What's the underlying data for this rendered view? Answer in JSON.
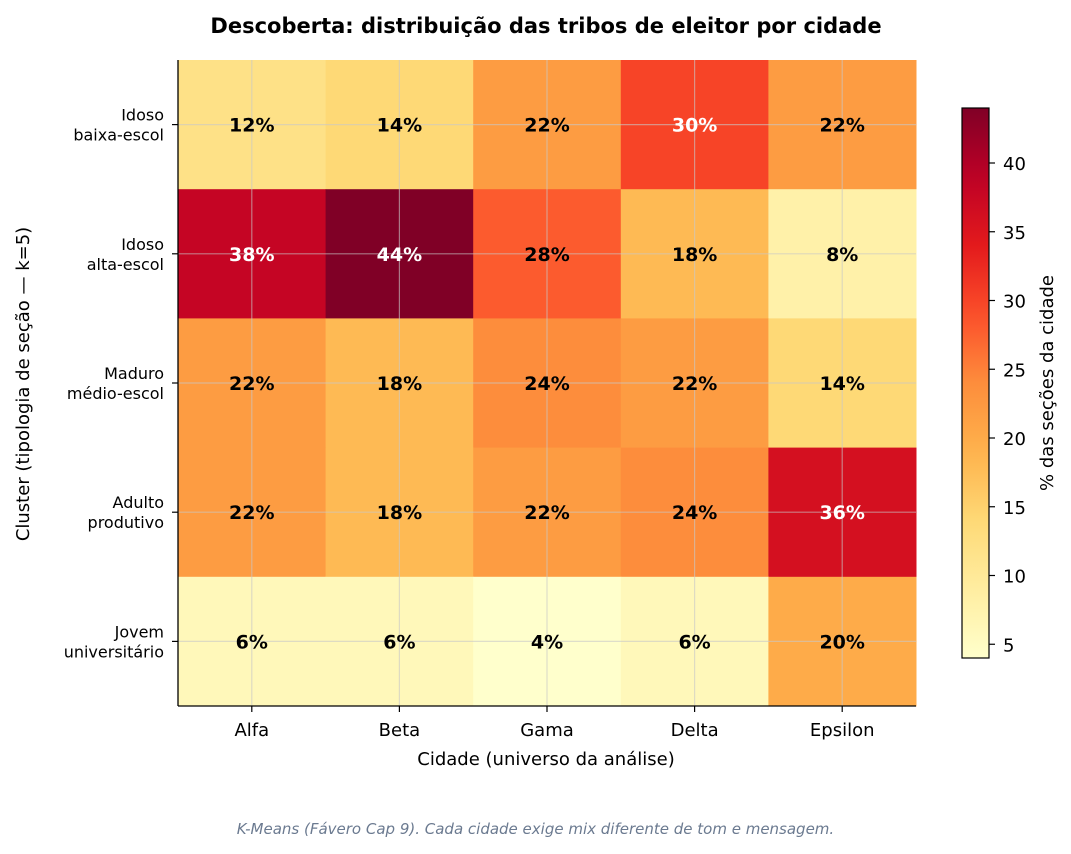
{
  "chart_data": {
    "type": "heatmap",
    "title": "Descoberta: distribuição das tribos de eleitor por cidade",
    "xlabel": "Cidade (universo da análise)",
    "ylabel": "Cluster (tipologia de seção — k=5)",
    "x_categories": [
      "Alfa",
      "Beta",
      "Gama",
      "Delta",
      "Epsilon"
    ],
    "y_categories": [
      [
        "Idoso",
        "baixa-escol"
      ],
      [
        "Idoso",
        "alta-escol"
      ],
      [
        "Maduro",
        "médio-escol"
      ],
      [
        "Adulto",
        "produtivo"
      ],
      [
        "Jovem",
        "universitário"
      ]
    ],
    "values": [
      [
        12,
        14,
        22,
        30,
        22
      ],
      [
        38,
        44,
        28,
        18,
        8
      ],
      [
        22,
        18,
        24,
        22,
        14
      ],
      [
        22,
        18,
        22,
        24,
        36
      ],
      [
        6,
        6,
        4,
        6,
        20
      ]
    ],
    "value_suffix": "%",
    "colormap": "YlOrRd",
    "colorbar": {
      "label": "% das seções da cidade",
      "range": [
        4,
        44
      ],
      "ticks": [
        5,
        10,
        15,
        20,
        25,
        30,
        35,
        40
      ]
    },
    "grid": true
  },
  "caption": "K-Means (Fávero Cap 9). Cada cidade exige mix diferente de tom e mensagem."
}
